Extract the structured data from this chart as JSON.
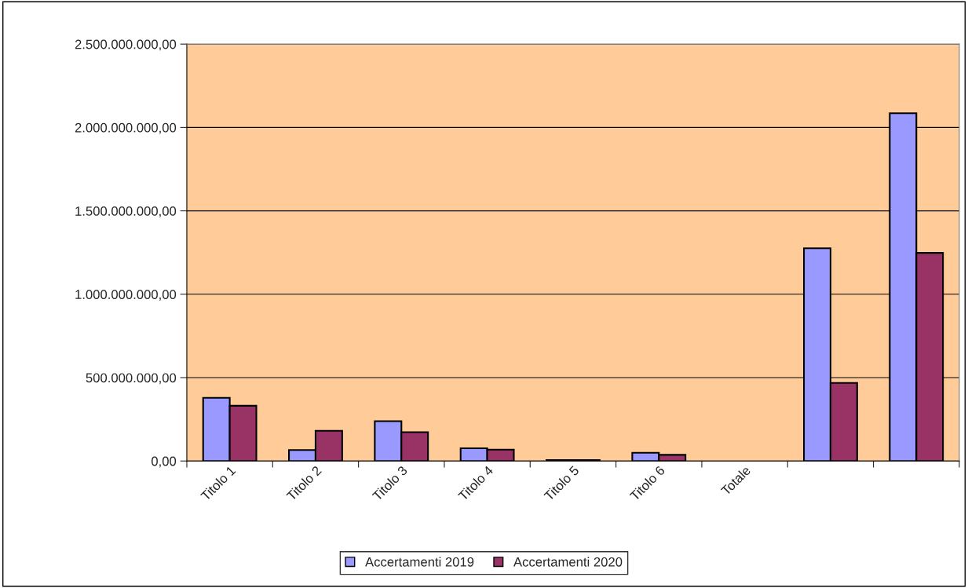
{
  "chart_data": {
    "type": "bar",
    "categories": [
      "Titolo 1",
      "Titolo 2",
      "Titolo 3",
      "Titolo 4",
      "Titolo 5",
      "Titolo 6",
      "Totale",
      null,
      null
    ],
    "series": [
      {
        "name": "Accertamenti 2019",
        "color": "#9999ff",
        "values": [
          379000000,
          66000000,
          239000000,
          76000000,
          6000000,
          49000000,
          null,
          1276000000,
          2085000000
        ]
      },
      {
        "name": "Accertamenti 2020",
        "color": "#993366",
        "values": [
          331000000,
          181000000,
          173000000,
          68000000,
          5000000,
          37000000,
          null,
          468000000,
          1248000000
        ]
      }
    ],
    "ylim": [
      0,
      2500000000
    ],
    "yticks": [
      {
        "value": 0,
        "label": "0,00"
      },
      {
        "value": 500000000,
        "label": "500.000.000,00"
      },
      {
        "value": 1000000000,
        "label": "1.000.000.000,00"
      },
      {
        "value": 1500000000,
        "label": "1.500.000.000,00"
      },
      {
        "value": 2000000000,
        "label": "2.000.000.000,00"
      },
      {
        "value": 2500000000,
        "label": "2.500.000.000,00"
      }
    ],
    "grid": "y",
    "legend": "bottom"
  }
}
